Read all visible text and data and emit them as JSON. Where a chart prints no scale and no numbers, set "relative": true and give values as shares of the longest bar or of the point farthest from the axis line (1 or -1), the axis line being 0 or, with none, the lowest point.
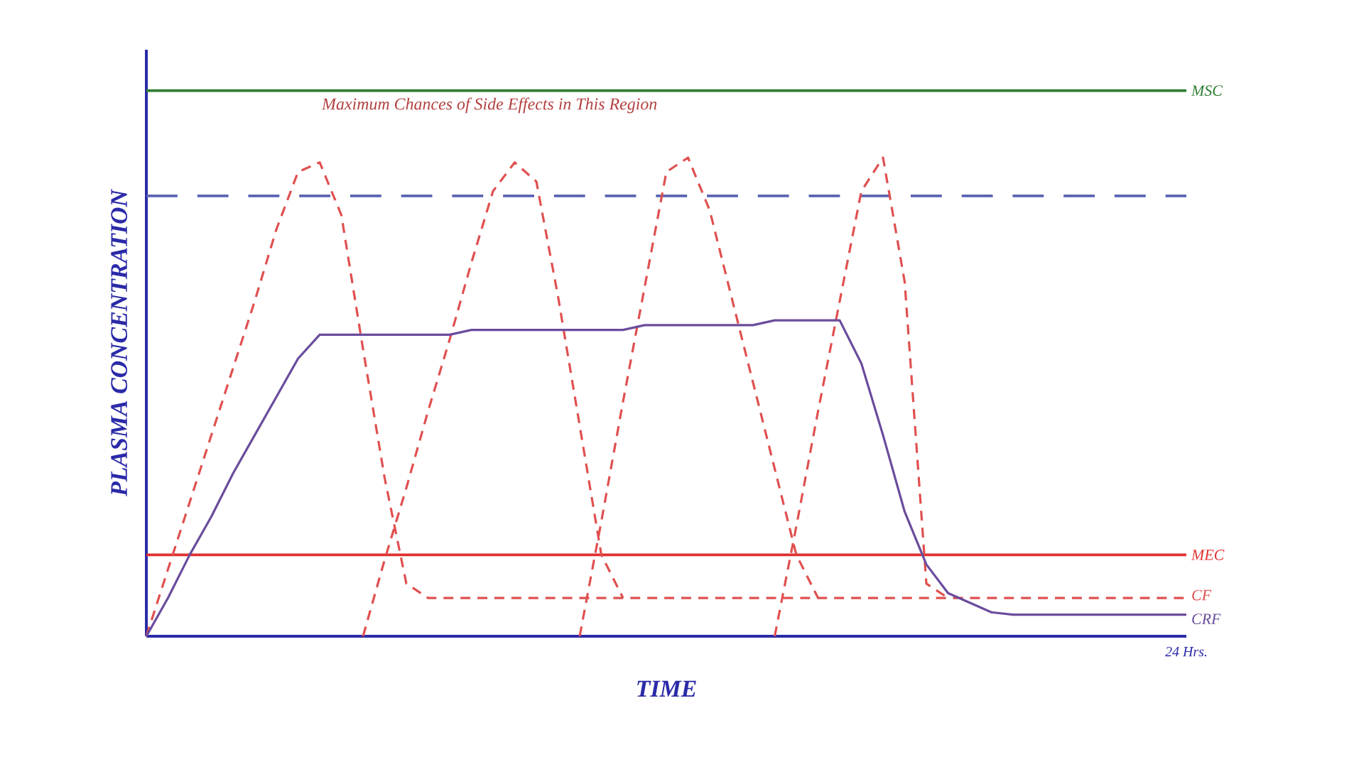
{
  "chart_data": {
    "type": "line",
    "relative": true,
    "xlabel": "TIME",
    "ylabel": "PLASMA CONCENTRATION",
    "annotations": [
      "Maximum Chances of Side Effects in This Region",
      "24 Hrs."
    ],
    "categories": [
      null,
      null,
      null,
      null,
      null,
      null,
      null,
      null,
      null,
      null,
      null,
      null,
      null,
      null,
      null,
      null,
      null,
      null,
      null,
      null,
      null,
      null,
      null,
      null,
      null,
      null,
      null,
      null,
      null,
      null,
      null,
      null,
      null,
      null,
      null,
      null,
      null,
      null,
      null,
      null,
      null,
      null,
      null,
      null,
      null,
      null,
      null,
      null,
      null
    ],
    "ref_lines": [
      {
        "axis": "y",
        "value": 1.14,
        "label": "MSC",
        "color": "#2e7d32",
        "line_style": "solid"
      },
      {
        "axis": "y",
        "value": 0.92,
        "label": null,
        "color": "#5a64b4",
        "line_style": "dashed"
      },
      {
        "axis": "y",
        "value": 0.17,
        "label": "MEC",
        "color": "#e03030",
        "line_style": "solid"
      }
    ],
    "series": [
      {
        "name": "CF",
        "color": "#e05050",
        "line_style": "dashed",
        "values": [
          0,
          0.14,
          0.28,
          0.42,
          0.56,
          0.7,
          0.85,
          0.97,
          0.99,
          0.88,
          0.6,
          0.33,
          0.11,
          0.08,
          0.08,
          0.08,
          0.08,
          0.08,
          0.08,
          0.08,
          0.08,
          0.08,
          0.08,
          0.08,
          0.08,
          0.08,
          0.08,
          0.08,
          0.08,
          0.08,
          0.08,
          0.08,
          0.08,
          0.08,
          0.08,
          0.08,
          0.08,
          0.08,
          0.08,
          0.08,
          0.08,
          0.08,
          0.08,
          0.08,
          0.08,
          0.08,
          0.08,
          0.08,
          0.08
        ]
      },
      {
        "color": "#e05050",
        "line_style": "dashed",
        "values": [
          null,
          null,
          null,
          null,
          null,
          null,
          null,
          null,
          null,
          null,
          0,
          0.16,
          0.31,
          0.47,
          0.62,
          0.78,
          0.93,
          0.99,
          0.95,
          0.71,
          0.44,
          0.17,
          0.08,
          null,
          null,
          null,
          null,
          null,
          null,
          null,
          null,
          null,
          null,
          null,
          null,
          null,
          null,
          null,
          null,
          null,
          null,
          null,
          null,
          null,
          null,
          null,
          null,
          null,
          null
        ]
      },
      {
        "color": "#e05050",
        "line_style": "dashed",
        "values": [
          null,
          null,
          null,
          null,
          null,
          null,
          null,
          null,
          null,
          null,
          null,
          null,
          null,
          null,
          null,
          null,
          null,
          null,
          null,
          null,
          0,
          0.24,
          0.49,
          0.73,
          0.97,
          1.0,
          0.89,
          0.71,
          0.53,
          0.35,
          0.17,
          0.08,
          null,
          null,
          null,
          null,
          null,
          null,
          null,
          null,
          null,
          null,
          null,
          null,
          null,
          null,
          null,
          null,
          null
        ]
      },
      {
        "color": "#e05050",
        "line_style": "dashed",
        "values": [
          null,
          null,
          null,
          null,
          null,
          null,
          null,
          null,
          null,
          null,
          null,
          null,
          null,
          null,
          null,
          null,
          null,
          null,
          null,
          null,
          null,
          null,
          null,
          null,
          null,
          null,
          null,
          null,
          null,
          0,
          0.23,
          0.47,
          0.7,
          0.93,
          1.0,
          0.74,
          0.11,
          0.08,
          null,
          null,
          null,
          null,
          null,
          null,
          null,
          null,
          null,
          null,
          null
        ]
      },
      {
        "name": "CRF",
        "color": "#6a4c9c",
        "line_style": "solid",
        "values": [
          0,
          0.08,
          0.17,
          0.25,
          0.34,
          0.42,
          0.5,
          0.58,
          0.63,
          0.63,
          0.63,
          0.63,
          0.63,
          0.63,
          0.63,
          0.64,
          0.64,
          0.64,
          0.64,
          0.64,
          0.64,
          0.64,
          0.64,
          0.65,
          0.65,
          0.65,
          0.65,
          0.65,
          0.65,
          0.66,
          0.66,
          0.66,
          0.66,
          0.57,
          0.42,
          0.26,
          0.15,
          0.09,
          0.07,
          0.05,
          0.045,
          0.045,
          0.045,
          0.045,
          0.045,
          0.045,
          0.045,
          0.045,
          0.045
        ]
      }
    ]
  }
}
